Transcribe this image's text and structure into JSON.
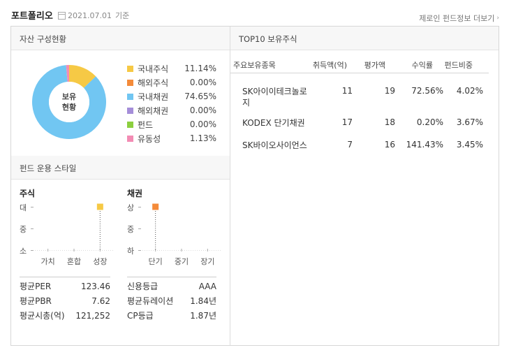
{
  "header": {
    "title": "포트폴리오",
    "date": "2021.07.01",
    "date_suffix": "기준",
    "more_link": "제로인 펀드정보 더보기",
    "more_icon": "chevron-right-icon"
  },
  "asset": {
    "section_title": "자산 구성현황",
    "donut_label_line1": "보유",
    "donut_label_line2": "현황",
    "items": [
      {
        "name": "국내주식",
        "pct": "11.14%",
        "value": 11.14,
        "color": "#f6c945"
      },
      {
        "name": "해외주식",
        "pct": "0.00%",
        "value": 0.0,
        "color": "#f48b3a"
      },
      {
        "name": "국내채권",
        "pct": "74.65%",
        "value": 74.65,
        "color": "#71c6f2"
      },
      {
        "name": "해외채권",
        "pct": "0.00%",
        "value": 0.0,
        "color": "#a58ed9"
      },
      {
        "name": "펀드",
        "pct": "0.00%",
        "value": 0.0,
        "color": "#8ccf3f"
      },
      {
        "name": "유동성",
        "pct": "1.13%",
        "value": 1.13,
        "color": "#f38cb4"
      }
    ]
  },
  "style": {
    "section_title": "펀드 운용 스타일",
    "stock": {
      "title": "주식",
      "y_labels": [
        "대",
        "중",
        "소"
      ],
      "x_labels": [
        "가치",
        "혼합",
        "성장"
      ],
      "marker": {
        "x": "성장",
        "y": "대",
        "color": "#f6c945"
      }
    },
    "bond": {
      "title": "채권",
      "y_labels": [
        "상",
        "중",
        "하"
      ],
      "x_labels": [
        "단기",
        "중기",
        "장기"
      ],
      "marker": {
        "x": "단기",
        "y": "상",
        "color": "#f48b3a"
      }
    },
    "stock_stats": [
      {
        "k": "평균PER",
        "v": "123.46"
      },
      {
        "k": "평균PBR",
        "v": "7.62"
      },
      {
        "k": "평균시총(억)",
        "v": "121,252"
      }
    ],
    "bond_stats": [
      {
        "k": "신용등급",
        "v": "AAA"
      },
      {
        "k": "평균듀레이션",
        "v": "1.84년"
      },
      {
        "k": "CP등급",
        "v": "1.87년"
      }
    ]
  },
  "top10": {
    "section_title": "TOP10 보유주식",
    "columns": [
      "주요보유종목",
      "취득액(억)",
      "평가액",
      "수익률",
      "펀드비중"
    ],
    "rows": [
      {
        "name_line1": "SK아이이테크놀로",
        "name_line2": "지",
        "cost": "11",
        "value": "19",
        "ret": "72.56%",
        "weight": "4.02%"
      },
      {
        "name_line1": "KODEX 단기채권",
        "name_line2": "",
        "cost": "17",
        "value": "18",
        "ret": "0.20%",
        "weight": "3.67%"
      },
      {
        "name_line1": "SK바이오사이언스",
        "name_line2": "",
        "cost": "7",
        "value": "16",
        "ret": "141.43%",
        "weight": "3.45%"
      }
    ]
  }
}
